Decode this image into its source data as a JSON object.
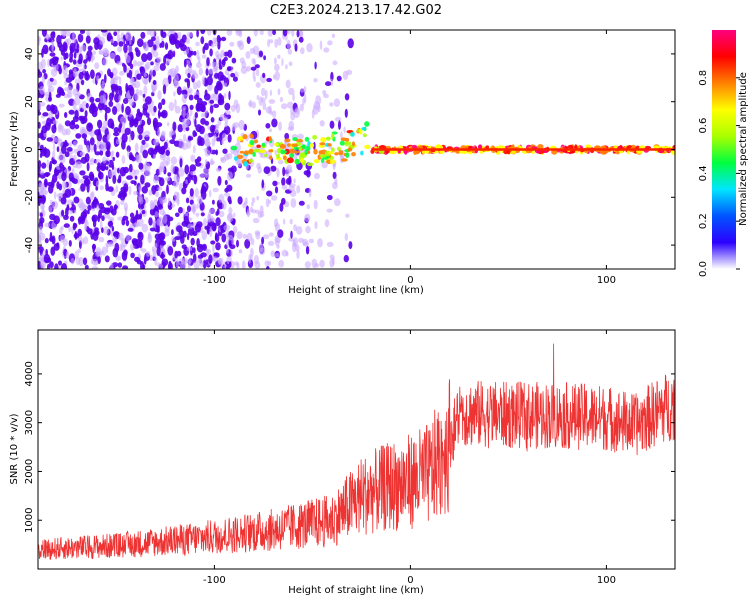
{
  "figure": {
    "title": "C2E3.2024.213.17.42.G02"
  },
  "chart_data": [
    {
      "type": "heatmap",
      "xlabel": "Height of straight line (km)",
      "ylabel": "Frequency (Hz)",
      "xlim": [
        -190,
        135
      ],
      "ylim": [
        -50,
        50
      ],
      "x_ticks": [
        -100,
        0,
        100
      ],
      "y_ticks": [
        -40,
        -20,
        0,
        20,
        40
      ],
      "grid": false,
      "colorbar": {
        "label": "Normalized spectral amplitude",
        "range": [
          0,
          1
        ],
        "ticks": [
          "0.0",
          "0.2",
          "0.4",
          "0.6",
          "0.8"
        ],
        "colormap": [
          "#ffffff",
          "#2b00ff",
          "#0055ff",
          "#00e5ff",
          "#00ff40",
          "#aaff00",
          "#ffff00",
          "#ff8000",
          "#ff0000",
          "#ff0080"
        ]
      },
      "description_regions": {
        "noise_x_range": [
          -190,
          -30
        ],
        "signal_x_range": [
          -90,
          135
        ],
        "signal_frequency_hz": 0
      }
    },
    {
      "type": "line",
      "xlabel": "Height of straight line (km)",
      "ylabel": "SNR (10 * v/v)",
      "xlim": [
        -190,
        135
      ],
      "ylim": [
        0,
        4900
      ],
      "x_ticks": [
        -100,
        0,
        100
      ],
      "y_ticks": [
        1000,
        2000,
        3000,
        4000
      ],
      "grid": false,
      "series_color": "#ee3333",
      "trend": [
        {
          "x": -190,
          "y": 400
        },
        {
          "x": -150,
          "y": 480
        },
        {
          "x": -110,
          "y": 620
        },
        {
          "x": -70,
          "y": 800
        },
        {
          "x": -40,
          "y": 1000
        },
        {
          "x": -25,
          "y": 1500
        },
        {
          "x": -10,
          "y": 1700
        },
        {
          "x": 0,
          "y": 1800
        },
        {
          "x": 10,
          "y": 1950
        },
        {
          "x": 20,
          "y": 2600
        },
        {
          "x": 25,
          "y": 3200
        },
        {
          "x": 50,
          "y": 3150
        },
        {
          "x": 75,
          "y": 3150
        },
        {
          "x": 100,
          "y": 3100
        },
        {
          "x": 115,
          "y": 2950
        },
        {
          "x": 125,
          "y": 3200
        },
        {
          "x": 135,
          "y": 3400
        }
      ]
    }
  ]
}
